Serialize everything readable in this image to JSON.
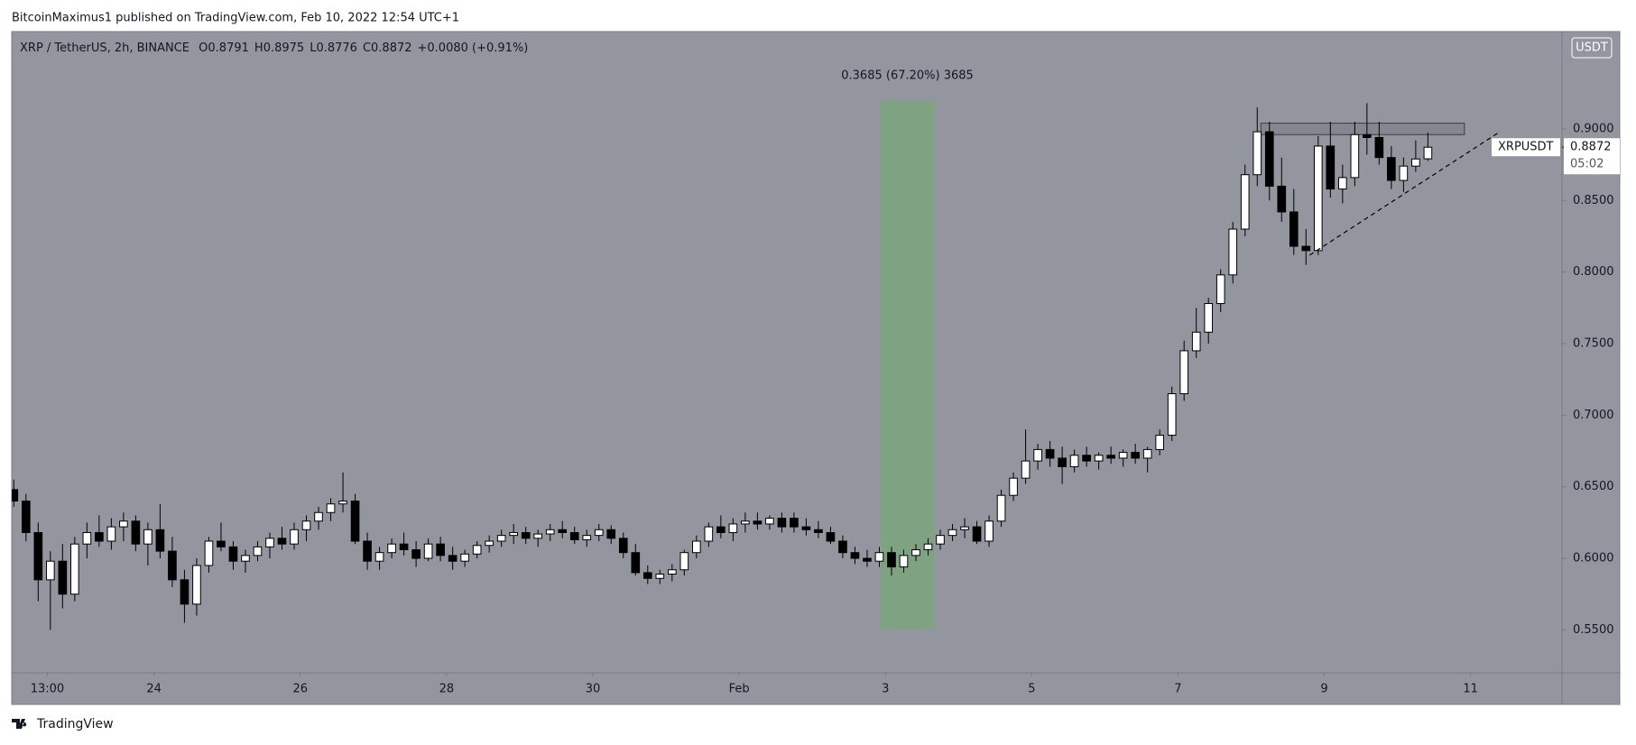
{
  "header": {
    "byline": "BitcoinMaximus1 published on TradingView.com, Feb 10, 2022 12:54 UTC+1"
  },
  "chart_data": {
    "type": "candlestick",
    "title": "XRP / TetherUS, 2h, BINANCE",
    "legend_values": [
      {
        "key": "O",
        "value": "0.8791"
      },
      {
        "key": "H",
        "value": "0.8975"
      },
      {
        "key": "L",
        "value": "0.8776"
      },
      {
        "key": "C",
        "value": "0.8872"
      }
    ],
    "change": "+0.0080 (+0.91%)",
    "currency": "USDT",
    "symbol": "XRPUSDT",
    "last_price": {
      "value": 0.8872,
      "label": "0.8872"
    },
    "countdown": "05:02",
    "up_color": "#ffffff",
    "down_color": "#000000",
    "ohlc": [
      [
        0.648,
        0.655,
        0.636,
        0.64
      ],
      [
        0.64,
        0.645,
        0.612,
        0.618
      ],
      [
        0.618,
        0.625,
        0.57,
        0.585
      ],
      [
        0.585,
        0.605,
        0.55,
        0.598
      ],
      [
        0.598,
        0.61,
        0.565,
        0.575
      ],
      [
        0.575,
        0.615,
        0.57,
        0.61
      ],
      [
        0.61,
        0.625,
        0.6,
        0.618
      ],
      [
        0.618,
        0.63,
        0.608,
        0.612
      ],
      [
        0.612,
        0.628,
        0.606,
        0.622
      ],
      [
        0.622,
        0.632,
        0.612,
        0.626
      ],
      [
        0.626,
        0.63,
        0.605,
        0.61
      ],
      [
        0.61,
        0.625,
        0.595,
        0.62
      ],
      [
        0.62,
        0.638,
        0.6,
        0.605
      ],
      [
        0.605,
        0.615,
        0.58,
        0.585
      ],
      [
        0.585,
        0.592,
        0.555,
        0.568
      ],
      [
        0.568,
        0.6,
        0.56,
        0.595
      ],
      [
        0.595,
        0.615,
        0.59,
        0.612
      ],
      [
        0.612,
        0.625,
        0.605,
        0.608
      ],
      [
        0.608,
        0.612,
        0.592,
        0.598
      ],
      [
        0.598,
        0.606,
        0.59,
        0.602
      ],
      [
        0.602,
        0.612,
        0.598,
        0.608
      ],
      [
        0.608,
        0.618,
        0.6,
        0.614
      ],
      [
        0.614,
        0.622,
        0.606,
        0.61
      ],
      [
        0.61,
        0.625,
        0.606,
        0.62
      ],
      [
        0.62,
        0.63,
        0.612,
        0.626
      ],
      [
        0.626,
        0.636,
        0.62,
        0.632
      ],
      [
        0.632,
        0.642,
        0.626,
        0.638
      ],
      [
        0.638,
        0.66,
        0.632,
        0.64
      ],
      [
        0.64,
        0.645,
        0.61,
        0.612
      ],
      [
        0.612,
        0.618,
        0.592,
        0.598
      ],
      [
        0.598,
        0.608,
        0.592,
        0.604
      ],
      [
        0.604,
        0.614,
        0.6,
        0.61
      ],
      [
        0.61,
        0.618,
        0.602,
        0.606
      ],
      [
        0.606,
        0.612,
        0.594,
        0.6
      ],
      [
        0.6,
        0.614,
        0.598,
        0.61
      ],
      [
        0.61,
        0.615,
        0.598,
        0.602
      ],
      [
        0.602,
        0.608,
        0.592,
        0.598
      ],
      [
        0.598,
        0.606,
        0.594,
        0.603
      ],
      [
        0.603,
        0.612,
        0.6,
        0.609
      ],
      [
        0.609,
        0.616,
        0.604,
        0.612
      ],
      [
        0.612,
        0.62,
        0.608,
        0.616
      ],
      [
        0.616,
        0.624,
        0.61,
        0.618
      ],
      [
        0.618,
        0.622,
        0.61,
        0.614
      ],
      [
        0.614,
        0.62,
        0.608,
        0.617
      ],
      [
        0.617,
        0.624,
        0.612,
        0.62
      ],
      [
        0.62,
        0.626,
        0.614,
        0.618
      ],
      [
        0.618,
        0.622,
        0.61,
        0.613
      ],
      [
        0.613,
        0.62,
        0.608,
        0.616
      ],
      [
        0.616,
        0.624,
        0.612,
        0.62
      ],
      [
        0.62,
        0.623,
        0.61,
        0.614
      ],
      [
        0.614,
        0.618,
        0.6,
        0.604
      ],
      [
        0.604,
        0.61,
        0.588,
        0.59
      ],
      [
        0.59,
        0.595,
        0.582,
        0.586
      ],
      [
        0.586,
        0.592,
        0.582,
        0.589
      ],
      [
        0.589,
        0.596,
        0.584,
        0.592
      ],
      [
        0.592,
        0.606,
        0.588,
        0.604
      ],
      [
        0.604,
        0.616,
        0.6,
        0.612
      ],
      [
        0.612,
        0.625,
        0.608,
        0.622
      ],
      [
        0.622,
        0.63,
        0.614,
        0.618
      ],
      [
        0.618,
        0.628,
        0.612,
        0.624
      ],
      [
        0.624,
        0.632,
        0.618,
        0.626
      ],
      [
        0.626,
        0.632,
        0.62,
        0.624
      ],
      [
        0.624,
        0.63,
        0.62,
        0.628
      ],
      [
        0.628,
        0.632,
        0.618,
        0.622
      ],
      [
        0.628,
        0.632,
        0.618,
        0.622
      ],
      [
        0.622,
        0.628,
        0.616,
        0.62
      ],
      [
        0.62,
        0.626,
        0.614,
        0.618
      ],
      [
        0.618,
        0.622,
        0.61,
        0.612
      ],
      [
        0.612,
        0.616,
        0.6,
        0.604
      ],
      [
        0.604,
        0.608,
        0.596,
        0.6
      ],
      [
        0.6,
        0.606,
        0.594,
        0.598
      ],
      [
        0.598,
        0.608,
        0.594,
        0.604
      ],
      [
        0.604,
        0.608,
        0.588,
        0.594
      ],
      [
        0.594,
        0.606,
        0.59,
        0.602
      ],
      [
        0.602,
        0.61,
        0.598,
        0.606
      ],
      [
        0.606,
        0.614,
        0.602,
        0.61
      ],
      [
        0.61,
        0.62,
        0.606,
        0.616
      ],
      [
        0.616,
        0.624,
        0.612,
        0.62
      ],
      [
        0.62,
        0.628,
        0.614,
        0.622
      ],
      [
        0.622,
        0.626,
        0.61,
        0.612
      ],
      [
        0.612,
        0.63,
        0.608,
        0.626
      ],
      [
        0.626,
        0.648,
        0.622,
        0.644
      ],
      [
        0.644,
        0.66,
        0.64,
        0.656
      ],
      [
        0.656,
        0.69,
        0.652,
        0.668
      ],
      [
        0.668,
        0.68,
        0.662,
        0.676
      ],
      [
        0.676,
        0.682,
        0.664,
        0.67
      ],
      [
        0.67,
        0.678,
        0.652,
        0.664
      ],
      [
        0.664,
        0.676,
        0.66,
        0.672
      ],
      [
        0.672,
        0.678,
        0.664,
        0.668
      ],
      [
        0.668,
        0.674,
        0.662,
        0.672
      ],
      [
        0.672,
        0.678,
        0.666,
        0.67
      ],
      [
        0.67,
        0.676,
        0.664,
        0.674
      ],
      [
        0.674,
        0.68,
        0.666,
        0.67
      ],
      [
        0.67,
        0.678,
        0.66,
        0.676
      ],
      [
        0.676,
        0.69,
        0.672,
        0.686
      ],
      [
        0.686,
        0.72,
        0.682,
        0.715
      ],
      [
        0.715,
        0.752,
        0.71,
        0.745
      ],
      [
        0.745,
        0.775,
        0.74,
        0.758
      ],
      [
        0.758,
        0.782,
        0.75,
        0.778
      ],
      [
        0.778,
        0.802,
        0.772,
        0.798
      ],
      [
        0.798,
        0.835,
        0.792,
        0.83
      ],
      [
        0.83,
        0.875,
        0.825,
        0.868
      ],
      [
        0.868,
        0.915,
        0.86,
        0.898
      ],
      [
        0.898,
        0.905,
        0.85,
        0.86
      ],
      [
        0.86,
        0.88,
        0.835,
        0.842
      ],
      [
        0.842,
        0.858,
        0.812,
        0.818
      ],
      [
        0.818,
        0.83,
        0.805,
        0.815
      ],
      [
        0.815,
        0.895,
        0.812,
        0.888
      ],
      [
        0.888,
        0.905,
        0.852,
        0.858
      ],
      [
        0.858,
        0.875,
        0.848,
        0.866
      ],
      [
        0.866,
        0.905,
        0.86,
        0.896
      ],
      [
        0.896,
        0.918,
        0.882,
        0.894
      ],
      [
        0.894,
        0.905,
        0.875,
        0.88
      ],
      [
        0.88,
        0.888,
        0.858,
        0.864
      ],
      [
        0.864,
        0.88,
        0.856,
        0.874
      ],
      [
        0.874,
        0.892,
        0.87,
        0.879
      ],
      [
        0.8791,
        0.8975,
        0.8776,
        0.8872
      ]
    ],
    "xlim": [
      -0.17,
      127
    ],
    "xticks": [
      {
        "value": 2.75,
        "label": "13:00"
      },
      {
        "value": 11.5,
        "label": "24"
      },
      {
        "value": 23.5,
        "label": "26"
      },
      {
        "value": 35.5,
        "label": "28"
      },
      {
        "value": 47.5,
        "label": "30"
      },
      {
        "value": 59.5,
        "label": "Feb"
      },
      {
        "value": 71.5,
        "label": "3"
      },
      {
        "value": 83.5,
        "label": "5"
      },
      {
        "value": 95.5,
        "label": "7"
      },
      {
        "value": 107.5,
        "label": "9"
      },
      {
        "value": 119.5,
        "label": "11"
      }
    ],
    "ylim": [
      0.52,
      0.968
    ],
    "yticks": [
      {
        "value": 0.55,
        "label": "0.5500"
      },
      {
        "value": 0.6,
        "label": "0.6000"
      },
      {
        "value": 0.65,
        "label": "0.6500"
      },
      {
        "value": 0.7,
        "label": "0.7000"
      },
      {
        "value": 0.75,
        "label": "0.7500"
      },
      {
        "value": 0.8,
        "label": "0.8000"
      },
      {
        "value": 0.85,
        "label": "0.8500"
      },
      {
        "value": 0.9,
        "label": "0.9000"
      }
    ],
    "range_box": {
      "x": [
        71.1,
        75.5
      ],
      "y": [
        0.55,
        0.919
      ],
      "label": "0.3685 (67.20%) 3685",
      "color": "#7fa283"
    },
    "resistance_box": {
      "x": [
        102.3,
        119
      ],
      "y": [
        0.896,
        0.904
      ]
    },
    "trendline": {
      "x": [
        106.3,
        121.9
      ],
      "y": [
        0.8118,
        0.898
      ]
    }
  },
  "footer": {
    "brand": "TradingView"
  }
}
